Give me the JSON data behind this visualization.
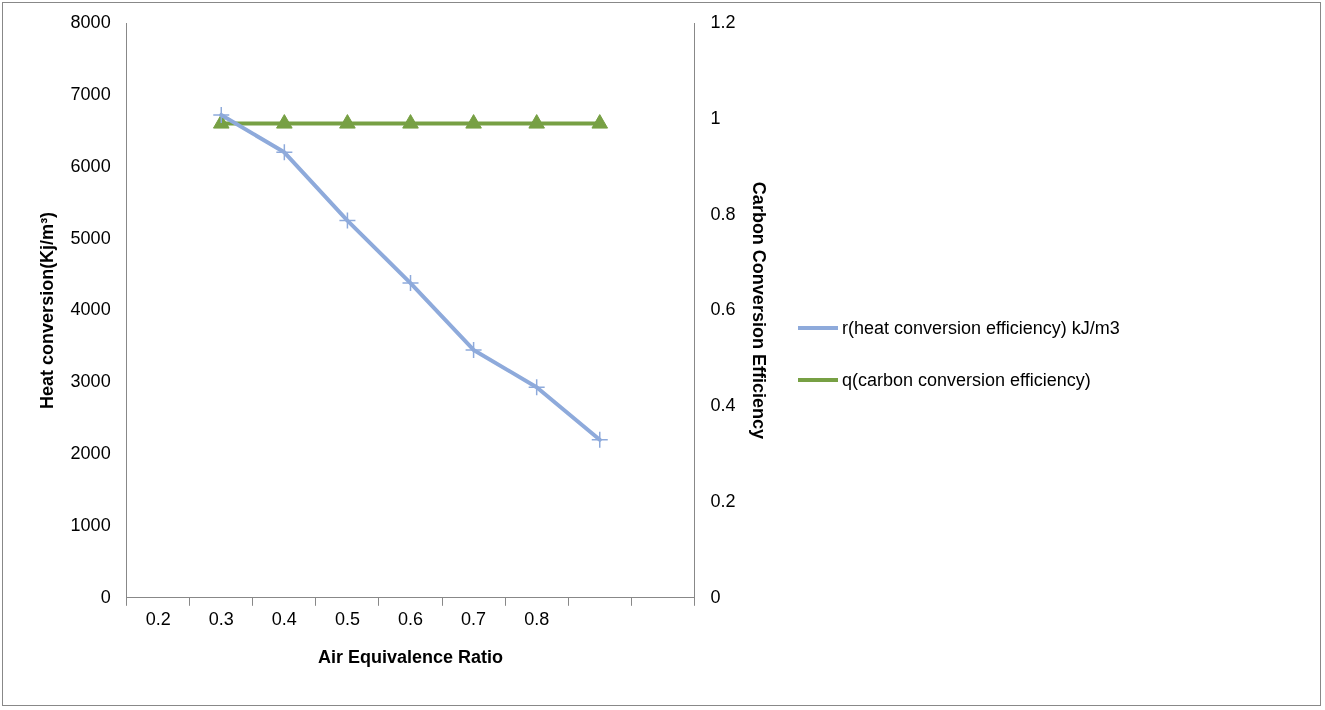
{
  "chart_data": {
    "type": "line",
    "xlabel": "Air Equivalence Ratio",
    "ylabel": "Heat conversion(Kj/m³)",
    "y2label": "Carbon Conversion Efficiency",
    "categories": [
      "0.2",
      "0.3",
      "0.4",
      "0.5",
      "0.6",
      "0.7",
      "0.8",
      null,
      null
    ],
    "series": [
      {
        "name": "r(heat conversion efficiency) kJ/m3",
        "color": "#8eaadb",
        "marker": "cross",
        "values": [
          null,
          6720,
          6200,
          5250,
          4380,
          3450,
          2930,
          2200,
          null
        ]
      },
      {
        "name": "q(carbon conversion efficiency)",
        "color": "#77a044",
        "marker": "triangle",
        "axis": "y2",
        "values": [
          null,
          0.99,
          0.99,
          0.99,
          0.99,
          0.99,
          0.99,
          0.99,
          null
        ]
      }
    ],
    "ylim": [
      0,
      8000
    ],
    "yticks": [
      0,
      1000,
      2000,
      3000,
      4000,
      5000,
      6000,
      7000,
      8000
    ],
    "y2lim": [
      0,
      1.2
    ],
    "y2ticks": [
      0,
      0.2,
      0.4,
      0.6,
      0.8,
      1,
      1.2
    ],
    "grid": false,
    "legend": "right",
    "line_style": "solid"
  }
}
